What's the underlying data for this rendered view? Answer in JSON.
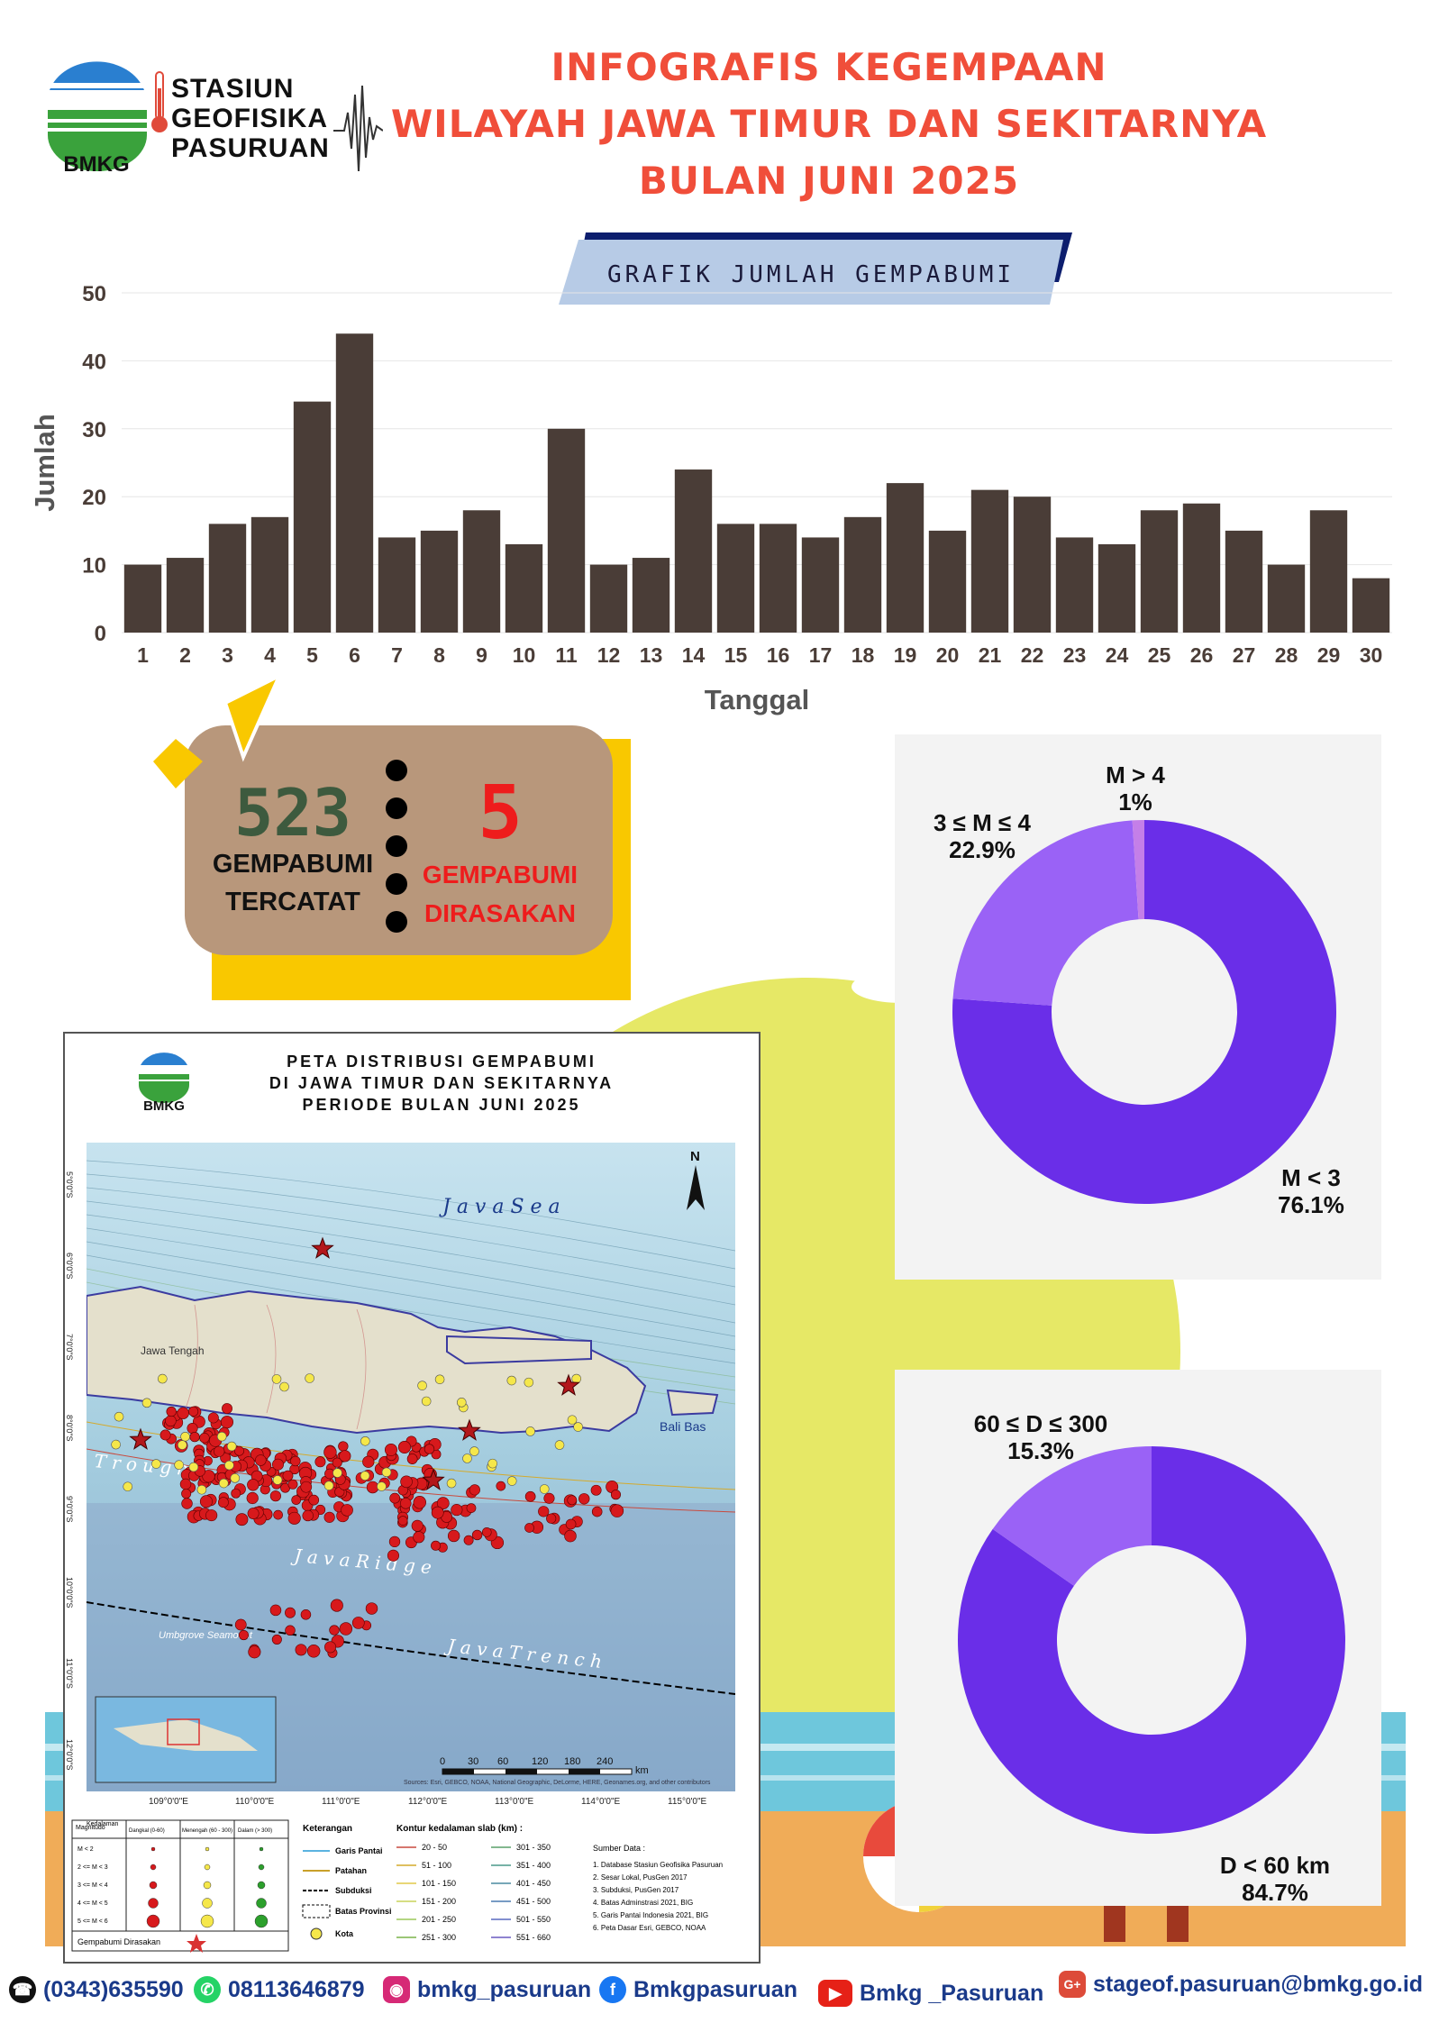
{
  "header": {
    "org_abbrev": "BMKG",
    "station_lines": [
      "STASIUN",
      "GEOFISIKA",
      "PASURUAN"
    ],
    "title_lines": [
      "INFOGRAFIS KEGEMPAAN",
      "WILAYAH JAWA TIMUR DAN SEKITARNYA",
      "BULAN JUNI 2025"
    ],
    "colors": {
      "title": "#f04e3a"
    }
  },
  "chart_banner": "GRAFIK JUMLAH GEMPABUMI",
  "chart_data": [
    {
      "type": "bar",
      "title": "",
      "xlabel": "Tanggal",
      "ylabel": "Jumlah",
      "ylim": [
        0,
        50
      ],
      "yticks": [
        0,
        10,
        20,
        30,
        40,
        50
      ],
      "categories": [
        "1",
        "2",
        "3",
        "4",
        "5",
        "6",
        "7",
        "8",
        "9",
        "10",
        "11",
        "12",
        "13",
        "14",
        "15",
        "16",
        "17",
        "18",
        "19",
        "20",
        "21",
        "22",
        "23",
        "24",
        "25",
        "26",
        "27",
        "28",
        "29",
        "30"
      ],
      "values": [
        10,
        11,
        16,
        17,
        34,
        44,
        14,
        15,
        18,
        13,
        30,
        10,
        11,
        24,
        16,
        16,
        14,
        17,
        22,
        15,
        21,
        20,
        14,
        13,
        18,
        19,
        15,
        10,
        18,
        8
      ],
      "grid": true,
      "colors": {
        "bar": "#4a3d37"
      }
    },
    {
      "type": "pie",
      "donut": true,
      "slices": [
        {
          "label": "M < 3",
          "value": 76.1,
          "value_label": "76.1%",
          "color": "#6a2ee8"
        },
        {
          "label": "3 ≤ M ≤ 4",
          "value": 22.9,
          "value_label": "22.9%",
          "color": "#9a62f6"
        },
        {
          "label": "M > 4",
          "value": 1.0,
          "value_label": "1%",
          "color": "#c47fe8"
        }
      ]
    },
    {
      "type": "pie",
      "donut": true,
      "slices": [
        {
          "label": "D < 60 km",
          "value": 84.7,
          "value_label": "84.7%",
          "color": "#6a2ee8"
        },
        {
          "label": "60 ≤ D ≤ 300",
          "value": 15.3,
          "value_label": "15.3%",
          "color": "#9a62f6"
        }
      ]
    }
  ],
  "stats": {
    "recorded_count": "523",
    "recorded_label_lines": [
      "GEMPABUMI",
      "TERCATAT"
    ],
    "felt_count": "5",
    "felt_label_lines": [
      "GEMPABUMI",
      "DIRASAKAN"
    ]
  },
  "map": {
    "logo": "BMKG",
    "title_lines": [
      "PETA DISTRIBUSI GEMPABUMI",
      "DI JAWA TIMUR DAN SEKITARNYA",
      "PERIODE BULAN  JUNI 2025"
    ],
    "labels": {
      "sea": "J a v a   S e a",
      "trough": "T r o u g h",
      "ridge": "J a v a   R i d g e",
      "trench": "J a v a   T r e n c h",
      "seamount": "Umbgrove Seamount",
      "bali": "Bali Bas",
      "north": "N",
      "jateng": "Jawa Tengah"
    },
    "lon_ticks": [
      "109°0'0\"E",
      "110°0'0\"E",
      "111°0'0\"E",
      "112°0'0\"E",
      "113°0'0\"E",
      "114°0'0\"E",
      "115°0'0\"E"
    ],
    "lat_ticks": [
      "5°0'0\"S",
      "6°0'0\"S",
      "7°0'0\"S",
      "8°0'0\"S",
      "9°0'0\"S",
      "10°0'0\"S",
      "11°0'0\"S",
      "12°0'0\"S"
    ],
    "scale_labels": [
      "0",
      "30",
      "60",
      "120",
      "180",
      "240",
      "km"
    ],
    "source_note": "Sources: Esri, GEBCO, NOAA, National Geographic, DeLorme, HERE, Geonames.org, and other contributors",
    "legend": {
      "magnitude_header": "Magnitudo",
      "depth_header": "Kedalaman",
      "mag_rows": [
        "M < 2",
        "2 <= M < 3",
        "3 <= M < 4",
        "4 <= M < 5",
        "5 <= M < 6"
      ],
      "depth_cols": [
        "Dangkal (0-60)",
        "Menengah (60 - 300)",
        "Dalam (> 300)"
      ],
      "felt_label": "Gempabumi Dirasakan",
      "keterangan_title": "Keterangan",
      "keterangan_items": [
        "Garis Pantai",
        "Patahan",
        "Subduksi",
        "Batas Provinsi",
        "Kota"
      ],
      "contour_title": "Kontur kedalaman slab (km) :",
      "contour_ranges": [
        "20 - 50",
        "51 - 100",
        "101 - 150",
        "151 - 200",
        "201 - 250",
        "251 - 300",
        "301 - 350",
        "351 - 400",
        "401 - 450",
        "451 - 500",
        "501 - 550",
        "551 - 660"
      ],
      "source_title": "Sumber Data :",
      "sources": [
        "1. Database Stasiun Geofisika Pasuruan",
        "2. Sesar Lokal, PusGen 2017",
        "3. Subduksi, PusGen 2017",
        "4. Batas Adminstrasi 2021, BIG",
        "5. Garis Pantai Indonesia 2021, BIG",
        "6. Peta Dasar Esri, GEBCO, NOAA"
      ]
    }
  },
  "footer": {
    "phone": "(0343)635590",
    "whatsapp": "08113646879",
    "instagram": "bmkg_pasuruan",
    "facebook": "Bmkgpasuruan",
    "youtube": "Bmkg _Pasuruan",
    "email": "stageof.pasuruan@bmkg.go.id"
  }
}
